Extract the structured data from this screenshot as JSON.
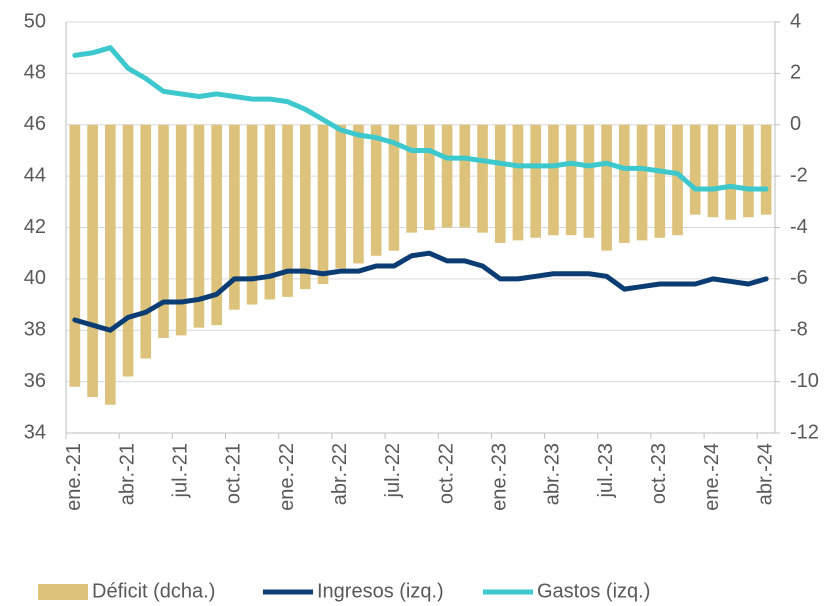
{
  "chart_data": {
    "type": "bar-line",
    "categories": [
      "ene.-21",
      null,
      null,
      "abr.-21",
      null,
      null,
      "jul.-21",
      null,
      null,
      "oct.-21",
      null,
      null,
      "ene.-22",
      null,
      null,
      "abr.-22",
      null,
      null,
      "jul.-22",
      null,
      null,
      "oct.-22",
      null,
      null,
      "ene.-23",
      null,
      null,
      "abr.-23",
      null,
      null,
      "jul.-23",
      null,
      null,
      "oct.-23",
      null,
      null,
      "ene.-24",
      null,
      null,
      "abr.-24"
    ],
    "series": [
      {
        "name": "Déficit (dcha.)",
        "type": "bar",
        "axis": "y2",
        "color": "#dcc27b",
        "values": [
          -10.2,
          -10.6,
          -10.9,
          -9.8,
          -9.1,
          -8.3,
          -8.2,
          -7.9,
          -7.8,
          -7.2,
          -7.0,
          -6.8,
          -6.7,
          -6.4,
          -6.2,
          -5.6,
          -5.4,
          -5.1,
          -4.9,
          -4.2,
          -4.1,
          -4.0,
          -4.0,
          -4.2,
          -4.6,
          -4.5,
          -4.4,
          -4.3,
          -4.3,
          -4.4,
          -4.9,
          -4.6,
          -4.5,
          -4.4,
          -4.3,
          -3.5,
          -3.6,
          -3.7,
          -3.6,
          -3.5
        ]
      },
      {
        "name": "Ingresos (izq.)",
        "type": "line",
        "axis": "y",
        "color": "#0b3c73",
        "values": [
          38.4,
          38.2,
          38.0,
          38.5,
          38.7,
          39.1,
          39.1,
          39.2,
          39.4,
          40.0,
          40.0,
          40.1,
          40.3,
          40.3,
          40.2,
          40.3,
          40.3,
          40.5,
          40.5,
          40.9,
          41.0,
          40.7,
          40.7,
          40.5,
          40.0,
          40.0,
          40.1,
          40.2,
          40.2,
          40.2,
          40.1,
          39.6,
          39.7,
          39.8,
          39.8,
          39.8,
          40.0,
          39.9,
          39.8,
          40.0
        ]
      },
      {
        "name": "Gastos (izq.)",
        "type": "line",
        "axis": "y",
        "color": "#3cc8cc",
        "values": [
          48.7,
          48.8,
          49.0,
          48.2,
          47.8,
          47.3,
          47.2,
          47.1,
          47.2,
          47.1,
          47.0,
          47.0,
          46.9,
          46.6,
          46.2,
          45.8,
          45.6,
          45.5,
          45.3,
          45.0,
          45.0,
          44.7,
          44.7,
          44.6,
          44.5,
          44.4,
          44.4,
          44.4,
          44.5,
          44.4,
          44.5,
          44.3,
          44.3,
          44.2,
          44.1,
          43.5,
          43.5,
          43.6,
          43.5,
          43.5
        ]
      }
    ],
    "ylim": [
      34,
      50
    ],
    "yticks": [
      34,
      36,
      38,
      40,
      42,
      44,
      46,
      48,
      50
    ],
    "y2lim": [
      -12,
      4
    ],
    "y2ticks": [
      -12,
      -10,
      -8,
      -6,
      -4,
      -2,
      0,
      2,
      4
    ],
    "grid": true,
    "legend": "bottom"
  }
}
